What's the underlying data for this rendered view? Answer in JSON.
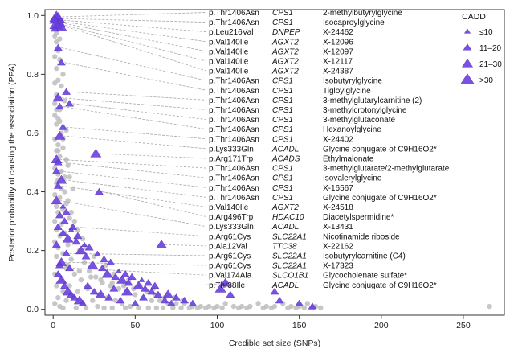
{
  "chart_data": {
    "type": "scatter",
    "xlabel": "Credible set size (SNPs)",
    "ylabel": "Posterior probability of causing the association (PPA)",
    "xlim": [
      -5,
      275
    ],
    "ylim": [
      -0.02,
      1.02
    ],
    "xticks": [
      0,
      50,
      100,
      150,
      200,
      250
    ],
    "yticks": [
      0.0,
      0.2,
      0.4,
      0.6,
      0.8,
      1.0
    ],
    "colors": {
      "background": "#bdbdbd",
      "highlight": "#6a3fe0",
      "leader": "#a8a8a8",
      "axis": "#333333"
    },
    "legend": {
      "title": "CADD",
      "position": "top-right",
      "entries": [
        {
          "label": "≤10",
          "size": 1
        },
        {
          "label": "11–20",
          "size": 2
        },
        {
          "label": "21–30",
          "size": 3
        },
        {
          "label": ">30",
          "size": 4
        }
      ]
    },
    "annotations": [
      {
        "variant": "p.Thr1406Asn",
        "gene": "CPS1",
        "metabolite": "2-methylbutyrylglycine",
        "x": 1,
        "y": 0.995
      },
      {
        "variant": "p.Thr1406Asn",
        "gene": "CPS1",
        "metabolite": "Isocaproylglycine",
        "x": 1,
        "y": 0.99
      },
      {
        "variant": "p.Leu216Val",
        "gene": "DNPEP",
        "metabolite": "X-24462",
        "x": 2,
        "y": 0.985
      },
      {
        "variant": "p.Val140Ile",
        "gene": "AGXT2",
        "metabolite": "X-12096",
        "x": 2,
        "y": 0.98
      },
      {
        "variant": "p.Val140Ile",
        "gene": "AGXT2",
        "metabolite": "X-12097",
        "x": 3,
        "y": 0.975
      },
      {
        "variant": "p.Val140Ile",
        "gene": "AGXT2",
        "metabolite": "X-12117",
        "x": 3,
        "y": 0.97
      },
      {
        "variant": "p.Val140Ile",
        "gene": "AGXT2",
        "metabolite": "X-24387",
        "x": 4,
        "y": 0.965
      },
      {
        "variant": "p.Thr1406Asn",
        "gene": "CPS1",
        "metabolite": "Isobutyrylglycine",
        "x": 3,
        "y": 0.89
      },
      {
        "variant": "p.Thr1406Asn",
        "gene": "CPS1",
        "metabolite": "Tigloylglycine",
        "x": 5,
        "y": 0.84
      },
      {
        "variant": "p.Thr1406Asn",
        "gene": "CPS1",
        "metabolite": "3-methylglutarylcarnitine (2)",
        "x": 8,
        "y": 0.74
      },
      {
        "variant": "p.Thr1406Asn",
        "gene": "CPS1",
        "metabolite": "3-methylcrotonylglycine",
        "x": 3,
        "y": 0.72
      },
      {
        "variant": "p.Thr1406Asn",
        "gene": "CPS1",
        "metabolite": "3-methylglutaconate",
        "x": 10,
        "y": 0.7
      },
      {
        "variant": "p.Thr1406Asn",
        "gene": "CPS1",
        "metabolite": "Hexanoylglycine",
        "x": 4,
        "y": 0.69
      },
      {
        "variant": "p.Thr1406Asn",
        "gene": "CPS1",
        "metabolite": "X-24402",
        "x": 6,
        "y": 0.62
      },
      {
        "variant": "p.Lys333Gln",
        "gene": "ACADL",
        "metabolite": "Glycine conjugate of C9H16O2*",
        "x": 4,
        "y": 0.59
      },
      {
        "variant": "p.Arg171Trp",
        "gene": "ACADS",
        "metabolite": "Ethylmalonate",
        "x": 26,
        "y": 0.53
      },
      {
        "variant": "p.Thr1406Asn",
        "gene": "CPS1",
        "metabolite": "3-methylglutarate/2-methylglutarate",
        "x": 2,
        "y": 0.51
      },
      {
        "variant": "p.Thr1406Asn",
        "gene": "CPS1",
        "metabolite": "Isovalerylglycine",
        "x": 3,
        "y": 0.5
      },
      {
        "variant": "p.Thr1406Asn",
        "gene": "CPS1",
        "metabolite": "X-16567",
        "x": 2,
        "y": 0.47
      },
      {
        "variant": "p.Thr1406Asn",
        "gene": "CPS1",
        "metabolite": "Glycine conjugate of C9H16O2*",
        "x": 5,
        "y": 0.44
      },
      {
        "variant": "p.Val140Ile",
        "gene": "AGXT2",
        "metabolite": "X-24518",
        "x": 3,
        "y": 0.42
      },
      {
        "variant": "p.Arg496Trp",
        "gene": "HDAC10",
        "metabolite": "Diacetylspermidine*",
        "x": 28,
        "y": 0.4
      },
      {
        "variant": "p.Lys333Gln",
        "gene": "ACADL",
        "metabolite": "X-13431",
        "x": 2,
        "y": 0.37
      },
      {
        "variant": "p.Arg61Cys",
        "gene": "SLC22A1",
        "metabolite": "Nicotinamide riboside",
        "x": 12,
        "y": 0.28
      },
      {
        "variant": "p.Ala12Val",
        "gene": "TTC38",
        "metabolite": "X-22162",
        "x": 66,
        "y": 0.22
      },
      {
        "variant": "p.Arg61Cys",
        "gene": "SLC22A1",
        "metabolite": "Isobutyrylcarnitine (C4)",
        "x": 8,
        "y": 0.19
      },
      {
        "variant": "p.Arg61Cys",
        "gene": "SLC22A1",
        "metabolite": "X-17323",
        "x": 5,
        "y": 0.16
      },
      {
        "variant": "p.Val174Ala",
        "gene": "SLCO1B1",
        "metabolite": "Glycocholenate sulfate*",
        "x": 10,
        "y": 0.14
      },
      {
        "variant": "p.Thr38Ile",
        "gene": "ACADL",
        "metabolite": "Glycine conjugate of C9H16O2*",
        "x": 105,
        "y": 0.09
      }
    ],
    "highlight_points": [
      [
        2,
        0.995,
        4
      ],
      [
        3,
        0.99,
        4
      ],
      [
        1,
        0.985,
        3
      ],
      [
        4,
        0.975,
        3
      ],
      [
        2,
        0.97,
        4
      ],
      [
        3,
        0.965,
        3
      ],
      [
        5,
        0.96,
        3
      ],
      [
        1,
        0.955,
        2
      ],
      [
        3,
        0.89,
        2
      ],
      [
        5,
        0.84,
        2
      ],
      [
        8,
        0.74,
        2
      ],
      [
        3,
        0.72,
        3
      ],
      [
        10,
        0.7,
        2
      ],
      [
        4,
        0.69,
        2
      ],
      [
        6,
        0.62,
        2
      ],
      [
        4,
        0.59,
        3
      ],
      [
        26,
        0.53,
        3
      ],
      [
        2,
        0.51,
        3
      ],
      [
        3,
        0.5,
        2
      ],
      [
        2,
        0.47,
        2
      ],
      [
        5,
        0.44,
        3
      ],
      [
        3,
        0.42,
        2
      ],
      [
        28,
        0.4,
        2
      ],
      [
        2,
        0.37,
        3
      ],
      [
        12,
        0.28,
        2
      ],
      [
        66,
        0.22,
        3
      ],
      [
        8,
        0.19,
        2
      ],
      [
        5,
        0.16,
        3
      ],
      [
        10,
        0.14,
        2
      ],
      [
        105,
        0.09,
        3
      ],
      [
        6,
        0.26,
        2
      ],
      [
        9,
        0.24,
        3
      ],
      [
        14,
        0.23,
        2
      ],
      [
        17,
        0.2,
        3
      ],
      [
        20,
        0.18,
        2
      ],
      [
        24,
        0.15,
        3
      ],
      [
        30,
        0.14,
        2
      ],
      [
        33,
        0.12,
        3
      ],
      [
        38,
        0.11,
        2
      ],
      [
        42,
        0.1,
        3
      ],
      [
        46,
        0.09,
        2
      ],
      [
        52,
        0.08,
        3
      ],
      [
        56,
        0.07,
        2
      ],
      [
        60,
        0.06,
        2
      ],
      [
        70,
        0.05,
        3
      ],
      [
        75,
        0.04,
        2
      ],
      [
        80,
        0.03,
        2
      ],
      [
        85,
        0.02,
        2
      ],
      [
        4,
        0.32,
        2
      ],
      [
        7,
        0.3,
        2
      ],
      [
        11,
        0.27,
        1
      ],
      [
        15,
        0.25,
        2
      ],
      [
        19,
        0.22,
        1
      ],
      [
        22,
        0.21,
        2
      ],
      [
        27,
        0.19,
        1
      ],
      [
        31,
        0.17,
        2
      ],
      [
        35,
        0.16,
        2
      ],
      [
        40,
        0.13,
        1
      ],
      [
        44,
        0.12,
        2
      ],
      [
        48,
        0.11,
        2
      ],
      [
        54,
        0.1,
        1
      ],
      [
        58,
        0.09,
        2
      ],
      [
        62,
        0.08,
        2
      ],
      [
        3,
        0.12,
        2
      ],
      [
        5,
        0.1,
        3
      ],
      [
        7,
        0.08,
        2
      ],
      [
        9,
        0.06,
        3
      ],
      [
        11,
        0.05,
        2
      ],
      [
        13,
        0.04,
        2
      ],
      [
        16,
        0.03,
        3
      ],
      [
        18,
        0.02,
        2
      ],
      [
        21,
        0.08,
        2
      ],
      [
        25,
        0.06,
        2
      ],
      [
        29,
        0.05,
        3
      ],
      [
        34,
        0.04,
        2
      ],
      [
        37,
        0.07,
        2
      ],
      [
        41,
        0.03,
        2
      ],
      [
        45,
        0.06,
        3
      ],
      [
        50,
        0.02,
        2
      ],
      [
        55,
        0.04,
        2
      ],
      [
        64,
        0.05,
        2
      ],
      [
        68,
        0.03,
        2
      ],
      [
        72,
        0.02,
        2
      ],
      [
        102,
        0.07,
        3
      ],
      [
        108,
        0.05,
        2
      ],
      [
        135,
        0.06,
        2
      ],
      [
        138,
        0.03,
        2
      ],
      [
        150,
        0.02,
        2
      ],
      [
        158,
        0.01,
        2
      ],
      [
        2,
        0.22,
        2
      ],
      [
        3,
        0.28,
        2
      ],
      [
        6,
        0.35,
        1
      ],
      [
        8,
        0.33,
        2
      ],
      [
        4,
        0.15,
        2
      ]
    ],
    "background_points": [
      [
        1,
        0.93
      ],
      [
        2,
        0.91
      ],
      [
        3,
        0.88
      ],
      [
        1,
        0.86
      ],
      [
        4,
        0.85
      ],
      [
        2,
        0.82
      ],
      [
        6,
        0.8
      ],
      [
        3,
        0.78
      ],
      [
        1,
        0.77
      ],
      [
        5,
        0.76
      ],
      [
        2,
        0.73
      ],
      [
        7,
        0.71
      ],
      [
        4,
        0.68
      ],
      [
        1,
        0.66
      ],
      [
        3,
        0.65
      ],
      [
        2,
        0.63
      ],
      [
        8,
        0.61
      ],
      [
        5,
        0.6
      ],
      [
        1,
        0.58
      ],
      [
        3,
        0.56
      ],
      [
        6,
        0.55
      ],
      [
        2,
        0.54
      ],
      [
        4,
        0.52
      ],
      [
        9,
        0.49
      ],
      [
        1,
        0.48
      ],
      [
        3,
        0.46
      ],
      [
        7,
        0.45
      ],
      [
        2,
        0.43
      ],
      [
        5,
        0.41
      ],
      [
        1,
        0.39
      ],
      [
        4,
        0.38
      ],
      [
        8,
        0.36
      ],
      [
        2,
        0.35
      ],
      [
        6,
        0.34
      ],
      [
        3,
        0.33
      ],
      [
        10,
        0.31
      ],
      [
        1,
        0.3
      ],
      [
        5,
        0.29
      ],
      [
        12,
        0.28
      ],
      [
        2,
        0.27
      ],
      [
        7,
        0.26
      ],
      [
        4,
        0.25
      ],
      [
        14,
        0.24
      ],
      [
        1,
        0.23
      ],
      [
        9,
        0.22
      ],
      [
        3,
        0.21
      ],
      [
        16,
        0.2
      ],
      [
        6,
        0.19
      ],
      [
        2,
        0.18
      ],
      [
        11,
        0.17
      ],
      [
        19,
        0.16
      ],
      [
        4,
        0.15
      ],
      [
        8,
        0.14
      ],
      [
        22,
        0.13
      ],
      [
        1,
        0.12
      ],
      [
        13,
        0.12
      ],
      [
        26,
        0.11
      ],
      [
        5,
        0.1
      ],
      [
        17,
        0.1
      ],
      [
        30,
        0.09
      ],
      [
        2,
        0.08
      ],
      [
        10,
        0.08
      ],
      [
        35,
        0.08
      ],
      [
        21,
        0.07
      ],
      [
        40,
        0.07
      ],
      [
        6,
        0.06
      ],
      [
        15,
        0.06
      ],
      [
        45,
        0.06
      ],
      [
        28,
        0.05
      ],
      [
        50,
        0.05
      ],
      [
        3,
        0.04
      ],
      [
        12,
        0.04
      ],
      [
        33,
        0.04
      ],
      [
        55,
        0.04
      ],
      [
        60,
        0.03
      ],
      [
        8,
        0.03
      ],
      [
        24,
        0.03
      ],
      [
        38,
        0.03
      ],
      [
        65,
        0.03
      ],
      [
        70,
        0.02
      ],
      [
        1,
        0.02
      ],
      [
        18,
        0.02
      ],
      [
        42,
        0.02
      ],
      [
        75,
        0.02
      ],
      [
        80,
        0.02
      ],
      [
        85,
        0.01
      ],
      [
        4,
        0.01
      ],
      [
        27,
        0.01
      ],
      [
        47,
        0.01
      ],
      [
        90,
        0.01
      ],
      [
        95,
        0.01
      ],
      [
        100,
        0.01
      ],
      [
        105,
        0.02
      ],
      [
        110,
        0.01
      ],
      [
        115,
        0.01
      ],
      [
        120,
        0.01
      ],
      [
        125,
        0.02
      ],
      [
        130,
        0.01
      ],
      [
        135,
        0.01
      ],
      [
        140,
        0.02
      ],
      [
        145,
        0.01
      ],
      [
        150,
        0.01
      ],
      [
        155,
        0.02
      ],
      [
        160,
        0.01
      ],
      [
        6,
        0.005
      ],
      [
        14,
        0.005
      ],
      [
        20,
        0.005
      ],
      [
        31,
        0.005
      ],
      [
        36,
        0.005
      ],
      [
        44,
        0.005
      ],
      [
        52,
        0.005
      ],
      [
        58,
        0.005
      ],
      [
        63,
        0.005
      ],
      [
        67,
        0.005
      ],
      [
        73,
        0.005
      ],
      [
        78,
        0.005
      ],
      [
        83,
        0.005
      ],
      [
        88,
        0.005
      ],
      [
        93,
        0.005
      ],
      [
        98,
        0.005
      ],
      [
        103,
        0.005
      ],
      [
        113,
        0.005
      ],
      [
        118,
        0.005
      ],
      [
        128,
        0.005
      ],
      [
        133,
        0.005
      ],
      [
        143,
        0.005
      ],
      [
        148,
        0.005
      ],
      [
        153,
        0.005
      ],
      [
        158,
        0.005
      ],
      [
        163,
        0.005
      ],
      [
        266,
        0.01
      ],
      [
        9,
        0.15
      ],
      [
        16,
        0.13
      ],
      [
        23,
        0.11
      ],
      [
        29,
        0.1
      ],
      [
        36,
        0.09
      ],
      [
        43,
        0.08
      ],
      [
        49,
        0.07
      ],
      [
        57,
        0.06
      ],
      [
        62,
        0.05
      ],
      [
        68,
        0.04
      ],
      [
        74,
        0.04
      ],
      [
        79,
        0.03
      ],
      [
        2,
        0.5
      ],
      [
        5,
        0.47
      ],
      [
        3,
        0.44
      ],
      [
        7,
        0.4
      ],
      [
        9,
        0.37
      ],
      [
        11,
        0.33
      ],
      [
        13,
        0.3
      ],
      [
        15,
        0.27
      ],
      [
        18,
        0.24
      ],
      [
        20,
        0.21
      ],
      [
        25,
        0.18
      ],
      [
        32,
        0.15
      ],
      [
        37,
        0.12
      ],
      [
        46,
        0.1
      ],
      [
        53,
        0.08
      ],
      [
        61,
        0.07
      ],
      [
        1,
        0.7
      ],
      [
        2,
        0.68
      ],
      [
        4,
        0.64
      ],
      [
        6,
        0.58
      ],
      [
        3,
        0.54
      ],
      [
        8,
        0.51
      ],
      [
        10,
        0.45
      ],
      [
        12,
        0.41
      ],
      [
        1,
        0.96
      ],
      [
        2,
        0.94
      ],
      [
        4,
        0.92
      ]
    ]
  }
}
